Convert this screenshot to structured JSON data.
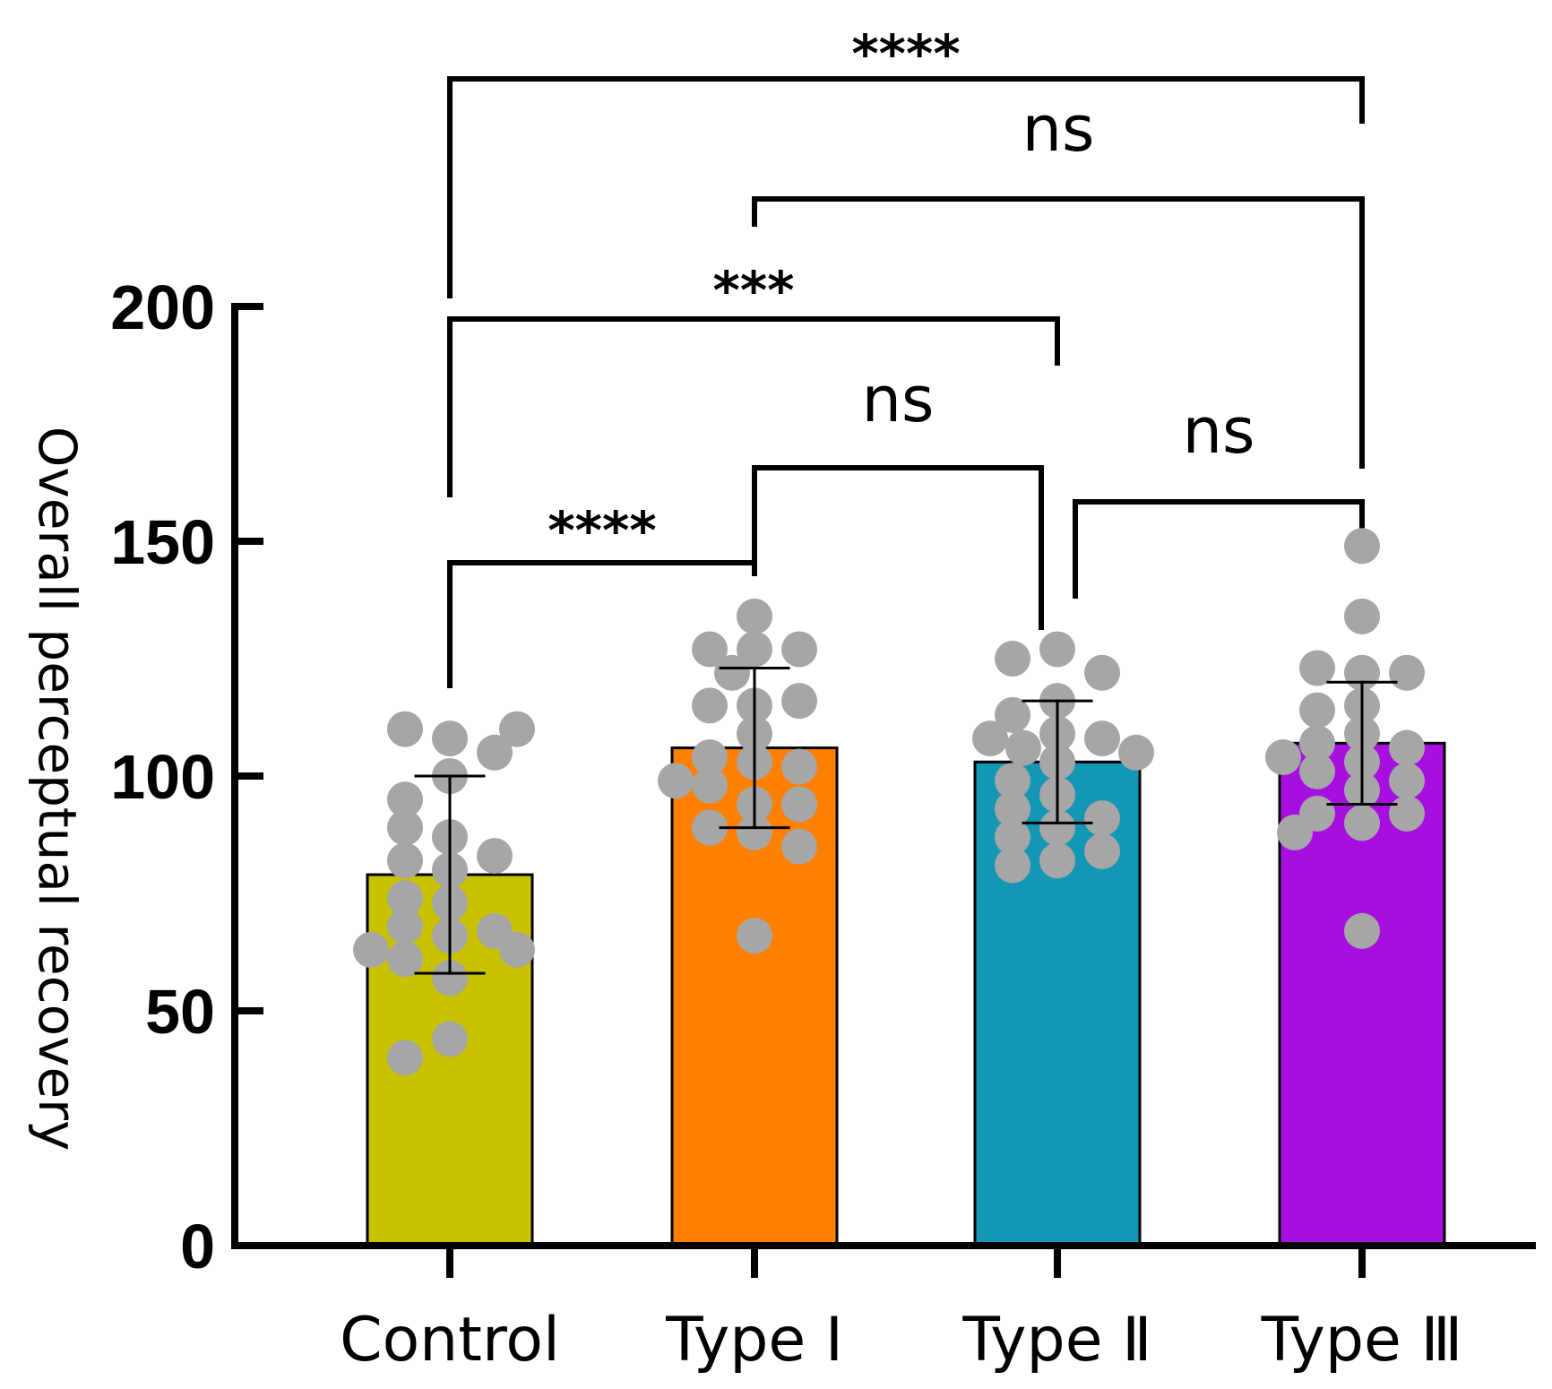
{
  "chart_data": {
    "type": "bar",
    "title": "",
    "xlabel": "",
    "ylabel": "Overall perceptual recovery",
    "ylim": [
      0,
      200
    ],
    "yticks": [
      0,
      50,
      100,
      150,
      200
    ],
    "ytick_labels": [
      "0",
      "50",
      "100",
      "150",
      "200"
    ],
    "categories": [
      "Control",
      "Type Ⅰ",
      "Type Ⅱ",
      "Type Ⅲ"
    ],
    "values": [
      79,
      106,
      103,
      107
    ],
    "errors": [
      21,
      17,
      13,
      13
    ],
    "colors": [
      "#c8c200",
      "#ff7f00",
      "#1497b4",
      "#a60fe0"
    ],
    "point_color": "#a6a6a6",
    "points": [
      [
        108,
        110,
        105,
        110,
        100,
        95,
        87,
        80,
        82,
        89,
        83,
        73,
        74,
        66,
        68,
        67,
        61,
        63,
        57,
        63,
        44,
        40
      ],
      [
        127,
        127,
        134,
        127,
        122,
        115,
        115,
        116,
        109,
        104,
        103,
        102,
        98,
        99,
        94,
        94,
        88,
        89,
        85,
        66
      ],
      [
        127,
        125,
        122,
        116,
        113,
        109,
        108,
        108,
        106,
        105,
        103,
        99,
        96,
        93,
        91,
        89,
        87,
        84,
        82,
        81
      ],
      [
        149,
        134,
        122,
        123,
        122,
        115,
        114,
        109,
        107,
        106,
        104,
        103,
        101,
        99,
        97,
        92,
        92,
        90,
        88,
        67
      ]
    ],
    "comparisons": [
      {
        "from": 0,
        "to": 1,
        "label": "****"
      },
      {
        "from": 1,
        "to": 2,
        "label": "ns"
      },
      {
        "from": 2,
        "to": 3,
        "label": "ns"
      },
      {
        "from": 0,
        "to": 2,
        "label": "***"
      },
      {
        "from": 1,
        "to": 3,
        "label": "ns"
      },
      {
        "from": 0,
        "to": 3,
        "label": "****"
      }
    ]
  }
}
